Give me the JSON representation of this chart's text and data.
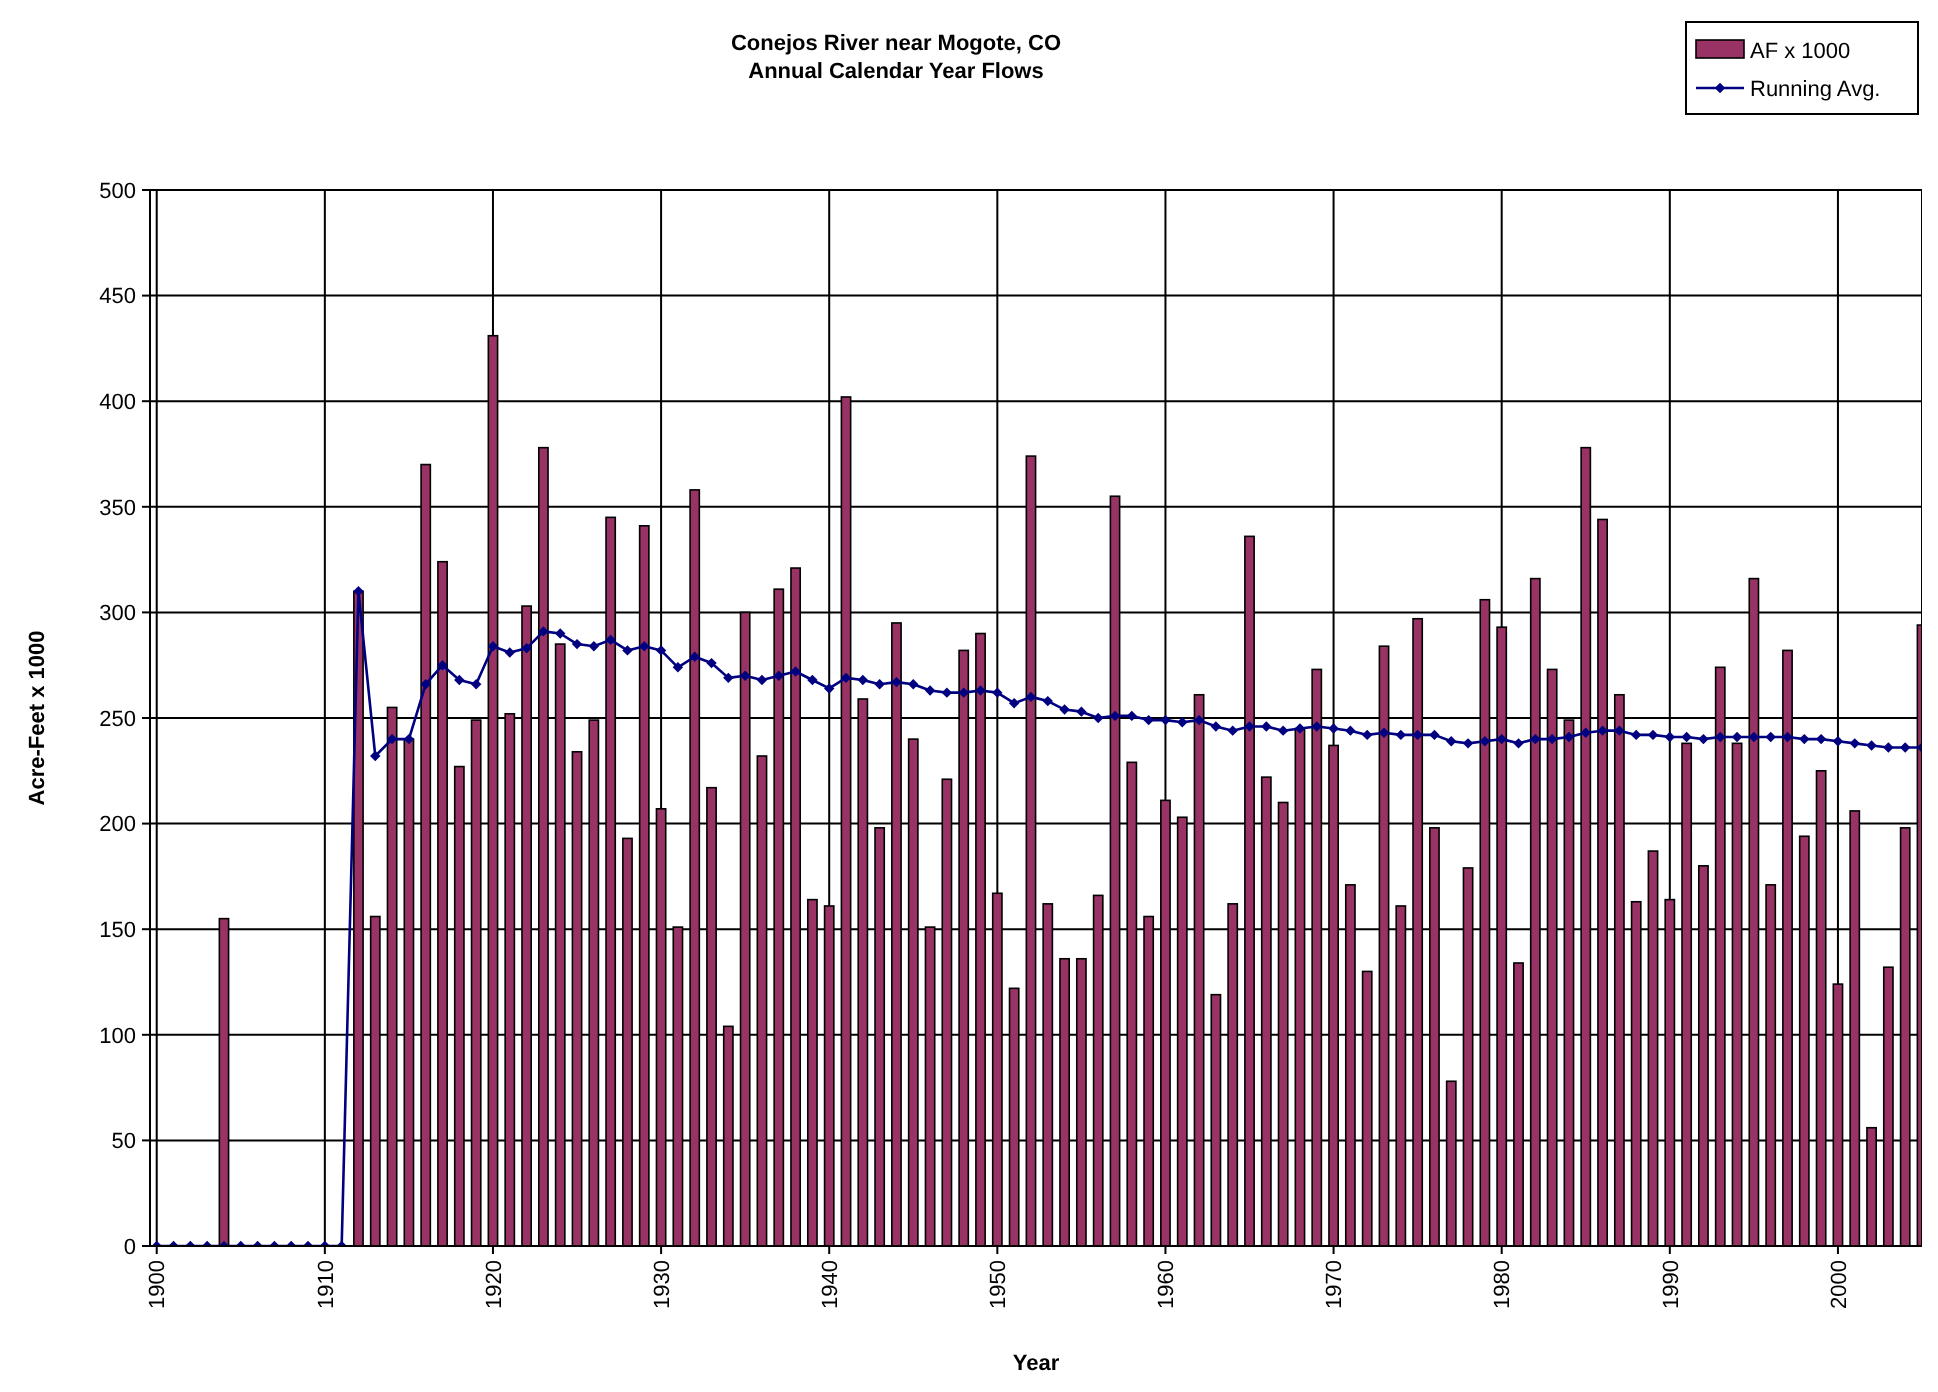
{
  "chart_data": {
    "type": "bar",
    "title": "Conejos River near Mogote, CO",
    "subtitle": "Annual Calendar Year Flows",
    "xlabel": "Year",
    "ylabel": "Acre-Feet x 1000",
    "x": [
      1900,
      1901,
      1902,
      1903,
      1904,
      1905,
      1906,
      1907,
      1908,
      1909,
      1910,
      1911,
      1912,
      1913,
      1914,
      1915,
      1916,
      1917,
      1918,
      1919,
      1920,
      1921,
      1922,
      1923,
      1924,
      1925,
      1926,
      1927,
      1928,
      1929,
      1930,
      1931,
      1932,
      1933,
      1934,
      1935,
      1936,
      1937,
      1938,
      1939,
      1940,
      1941,
      1942,
      1943,
      1944,
      1945,
      1946,
      1947,
      1948,
      1949,
      1950,
      1951,
      1952,
      1953,
      1954,
      1955,
      1956,
      1957,
      1958,
      1959,
      1960,
      1961,
      1962,
      1963,
      1964,
      1965,
      1966,
      1967,
      1968,
      1969,
      1970,
      1971,
      1972,
      1973,
      1974,
      1975,
      1976,
      1977,
      1978,
      1979,
      1980,
      1981,
      1982,
      1983,
      1984,
      1985,
      1986,
      1987,
      1988,
      1989,
      1990,
      1991,
      1992,
      1993,
      1994,
      1995,
      1996,
      1997,
      1998,
      1999,
      2000,
      2001,
      2002,
      2003,
      2004,
      2005
    ],
    "series": [
      {
        "name": "AF x 1000",
        "color": "#993366",
        "values": [
          0,
          0,
          0,
          0,
          155,
          0,
          0,
          0,
          0,
          0,
          0,
          0,
          310,
          156,
          255,
          240,
          370,
          324,
          227,
          249,
          431,
          252,
          303,
          378,
          285,
          234,
          249,
          345,
          193,
          341,
          207,
          151,
          358,
          217,
          104,
          300,
          232,
          311,
          321,
          164,
          161,
          402,
          259,
          198,
          295,
          240,
          151,
          221,
          282,
          290,
          167,
          122,
          374,
          162,
          136,
          136,
          166,
          355,
          229,
          156,
          211,
          203,
          261,
          119,
          162,
          336,
          222,
          210,
          245,
          273,
          237,
          171,
          130,
          284,
          161,
          297,
          198,
          78,
          179,
          306,
          293,
          134,
          316,
          273,
          249,
          378,
          344,
          261,
          163,
          187,
          164,
          238,
          180,
          274,
          238,
          316,
          171,
          282,
          194,
          225,
          124,
          206,
          56,
          132,
          198,
          294
        ]
      },
      {
        "name": "Running Avg.",
        "type": "line",
        "color": "#000080",
        "marker": "diamond",
        "values": [
          0,
          0,
          0,
          0,
          0,
          0,
          0,
          0,
          0,
          0,
          0,
          0,
          310,
          232,
          240,
          240,
          266,
          275,
          268,
          266,
          284,
          281,
          283,
          291,
          290,
          285,
          284,
          287,
          282,
          284,
          282,
          274,
          279,
          276,
          269,
          270,
          268,
          270,
          272,
          268,
          264,
          269,
          268,
          266,
          267,
          266,
          263,
          262,
          262,
          263,
          262,
          257,
          260,
          258,
          254,
          253,
          250,
          251,
          251,
          249,
          249,
          248,
          249,
          246,
          244,
          246,
          246,
          244,
          245,
          246,
          245,
          244,
          242,
          243,
          242,
          242,
          242,
          239,
          238,
          239,
          240,
          238,
          240,
          240,
          241,
          243,
          244,
          244,
          242,
          242,
          241,
          241,
          240,
          241,
          241,
          241,
          241,
          241,
          240,
          240,
          239,
          238,
          237,
          236,
          236,
          236
        ]
      }
    ],
    "xlim": [
      1899.6,
      2005
    ],
    "xticks": [
      1900,
      1910,
      1920,
      1930,
      1940,
      1950,
      1960,
      1970,
      1980,
      1990,
      2000
    ],
    "ylim": [
      0,
      500
    ],
    "yticks": [
      0,
      50,
      100,
      150,
      200,
      250,
      300,
      350,
      400,
      450,
      500
    ],
    "grid": true,
    "legend": "top right"
  }
}
